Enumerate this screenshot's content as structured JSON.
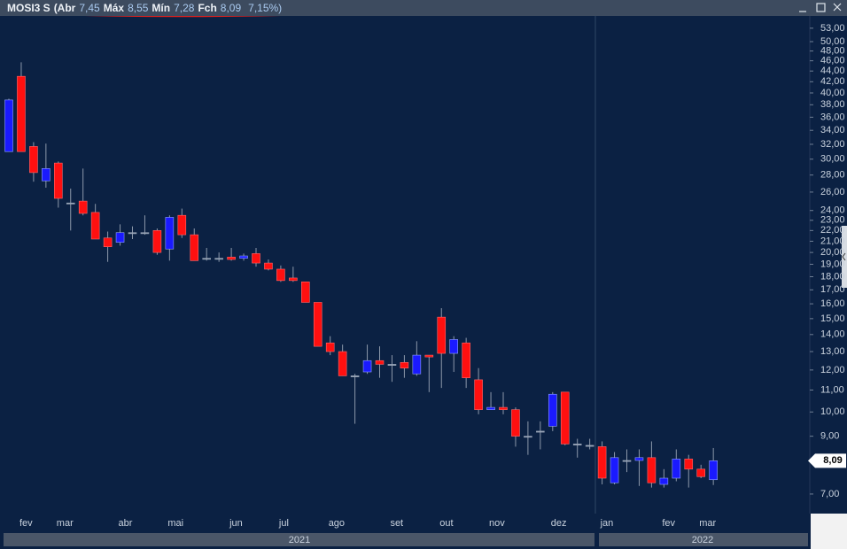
{
  "chart_data": {
    "type": "candlestick",
    "header": {
      "symbol": "MOSI3 S",
      "fields": [
        {
          "label": "(Abr",
          "value": "7,45"
        },
        {
          "label": "Máx",
          "value": "8,55"
        },
        {
          "label": "Mín",
          "value": "7,28"
        },
        {
          "label": "Fch",
          "value": "8,09"
        }
      ],
      "change": "7,15%)"
    },
    "categories": [
      null,
      "fev",
      null,
      null,
      "mar",
      null,
      null,
      null,
      null,
      "abr",
      null,
      null,
      null,
      "mai",
      null,
      null,
      null,
      null,
      "jun",
      null,
      null,
      null,
      "jul",
      null,
      null,
      null,
      "ago",
      null,
      null,
      null,
      null,
      "set",
      null,
      null,
      null,
      "out",
      null,
      null,
      null,
      "nov",
      null,
      null,
      null,
      null,
      "dez",
      null,
      null,
      null,
      "jan",
      null,
      null,
      null,
      null,
      "fev",
      null,
      null,
      "mar",
      null
    ],
    "open": [
      31.0,
      43.0,
      31.7,
      27.3,
      29.5,
      24.8,
      25.0,
      23.8,
      21.3,
      20.9,
      21.8,
      21.8,
      22.0,
      20.3,
      23.5,
      21.6,
      19.5,
      19.5,
      19.6,
      19.5,
      19.9,
      19.1,
      18.6,
      17.9,
      17.6,
      16.1,
      13.5,
      13.0,
      11.7,
      11.9,
      12.5,
      12.3,
      12.4,
      11.8,
      12.8,
      15.1,
      12.9,
      13.5,
      11.5,
      10.1,
      10.2,
      10.1,
      9.0,
      9.2,
      9.4,
      10.9,
      8.7,
      8.65,
      8.6,
      7.35,
      8.1,
      8.1,
      8.2,
      7.3,
      7.5,
      8.15,
      7.8,
      7.45
    ],
    "high": [
      39.0,
      45.7,
      32.3,
      32.1,
      29.7,
      26.4,
      28.8,
      24.7,
      21.9,
      22.6,
      22.4,
      23.5,
      22.2,
      23.5,
      24.2,
      22.2,
      20.4,
      20.0,
      20.4,
      19.9,
      20.4,
      19.4,
      18.9,
      18.8,
      17.6,
      16.1,
      13.9,
      13.4,
      11.8,
      13.4,
      13.3,
      12.8,
      12.8,
      13.6,
      12.8,
      15.7,
      13.9,
      13.8,
      12.1,
      10.9,
      10.9,
      10.2,
      9.6,
      9.6,
      10.9,
      10.9,
      8.9,
      8.9,
      8.8,
      8.4,
      8.5,
      8.5,
      8.8,
      7.8,
      8.5,
      8.3,
      7.95,
      8.55
    ],
    "low": [
      31.0,
      31.0,
      27.2,
      26.5,
      24.3,
      22.0,
      23.5,
      21.2,
      19.2,
      20.6,
      21.2,
      21.6,
      19.8,
      19.3,
      21.3,
      19.3,
      19.3,
      19.2,
      19.3,
      19.3,
      18.8,
      18.5,
      17.6,
      17.6,
      16.1,
      13.3,
      12.8,
      11.7,
      9.5,
      11.8,
      11.6,
      11.4,
      11.6,
      11.7,
      10.9,
      11.1,
      11.9,
      11.1,
      9.9,
      10.1,
      9.9,
      8.6,
      8.3,
      8.5,
      9.2,
      8.65,
      8.2,
      8.5,
      7.3,
      7.3,
      7.7,
      7.25,
      7.2,
      7.2,
      7.4,
      7.2,
      7.5,
      7.28
    ],
    "close": [
      38.8,
      31.0,
      28.3,
      28.8,
      25.3,
      24.8,
      23.7,
      21.2,
      20.5,
      21.8,
      21.8,
      21.8,
      20.0,
      23.3,
      21.6,
      19.3,
      19.5,
      19.5,
      19.4,
      19.7,
      19.1,
      18.6,
      17.7,
      17.7,
      16.1,
      13.3,
      13.0,
      11.7,
      11.7,
      12.5,
      12.3,
      12.3,
      12.1,
      12.8,
      12.7,
      12.9,
      13.7,
      11.6,
      10.1,
      10.2,
      10.1,
      9.0,
      9.0,
      9.2,
      10.8,
      8.7,
      8.7,
      8.65,
      7.5,
      8.2,
      8.1,
      8.2,
      7.35,
      7.5,
      8.15,
      7.8,
      7.55,
      8.09
    ],
    "up_color": "#1a1aff",
    "down_color": "#ff1010",
    "doji_color": "#9aa6b8",
    "log_scale": true,
    "ylim": [
      6.43,
      55.9
    ],
    "yticks": [
      {
        "value": 7,
        "label": "7,00"
      },
      {
        "value": 9,
        "label": "9,00"
      },
      {
        "value": 10,
        "label": "10,00"
      },
      {
        "value": 11,
        "label": "11,00"
      },
      {
        "value": 12,
        "label": "12,00"
      },
      {
        "value": 13,
        "label": "13,00"
      },
      {
        "value": 14,
        "label": "14,00"
      },
      {
        "value": 15,
        "label": "15,00"
      },
      {
        "value": 16,
        "label": "16,00"
      },
      {
        "value": 17,
        "label": "17,00"
      },
      {
        "value": 18,
        "label": "18,00"
      },
      {
        "value": 19,
        "label": "19,00"
      },
      {
        "value": 20,
        "label": "20,00"
      },
      {
        "value": 21,
        "label": "21,00"
      },
      {
        "value": 22,
        "label": "22,00"
      },
      {
        "value": 23,
        "label": "23,00"
      },
      {
        "value": 24,
        "label": "24,00"
      },
      {
        "value": 26,
        "label": "26,00"
      },
      {
        "value": 28,
        "label": "28,00"
      },
      {
        "value": 30,
        "label": "30,00"
      },
      {
        "value": 32,
        "label": "32,00"
      },
      {
        "value": 34,
        "label": "34,00"
      },
      {
        "value": 36,
        "label": "36,00"
      },
      {
        "value": 38,
        "label": "38,00"
      },
      {
        "value": 40,
        "label": "40,00"
      },
      {
        "value": 42,
        "label": "42,00"
      },
      {
        "value": 44,
        "label": "44,00"
      },
      {
        "value": 46,
        "label": "46,00"
      },
      {
        "value": 48,
        "label": "48,00"
      },
      {
        "value": 50,
        "label": "50,00"
      },
      {
        "value": 53,
        "label": "53,00"
      }
    ],
    "last_price_label": "8,09",
    "years": [
      "2021",
      "2022"
    ]
  }
}
